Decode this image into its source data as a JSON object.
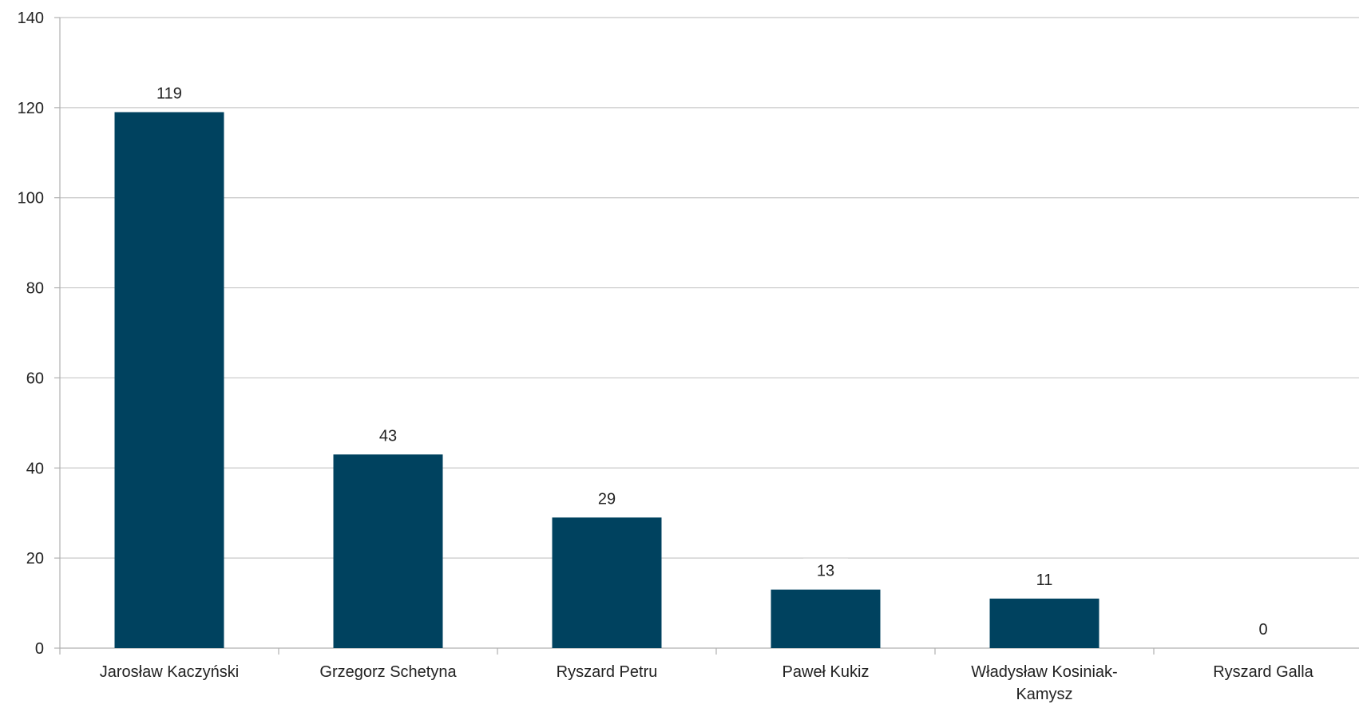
{
  "chart_data": {
    "type": "bar",
    "categories": [
      [
        "Jarosław Kaczyński"
      ],
      [
        "Grzegorz Schetyna"
      ],
      [
        "Ryszard Petru"
      ],
      [
        "Paweł Kukiz"
      ],
      [
        "Władysław Kosiniak-",
        "Kamysz"
      ],
      [
        "Ryszard Galla"
      ]
    ],
    "values": [
      119,
      43,
      29,
      13,
      11,
      0
    ],
    "data_labels": [
      "119",
      "43",
      "29",
      "13",
      "11",
      "0"
    ],
    "ylim": [
      0,
      140
    ],
    "yticks": [
      0,
      20,
      40,
      60,
      80,
      100,
      120,
      140
    ],
    "title": "",
    "xlabel": "",
    "ylabel": "",
    "grid": true,
    "bar_color": "#00425f",
    "grid_color": "#c8c8c8",
    "axis_color": "#b0b0b0"
  }
}
